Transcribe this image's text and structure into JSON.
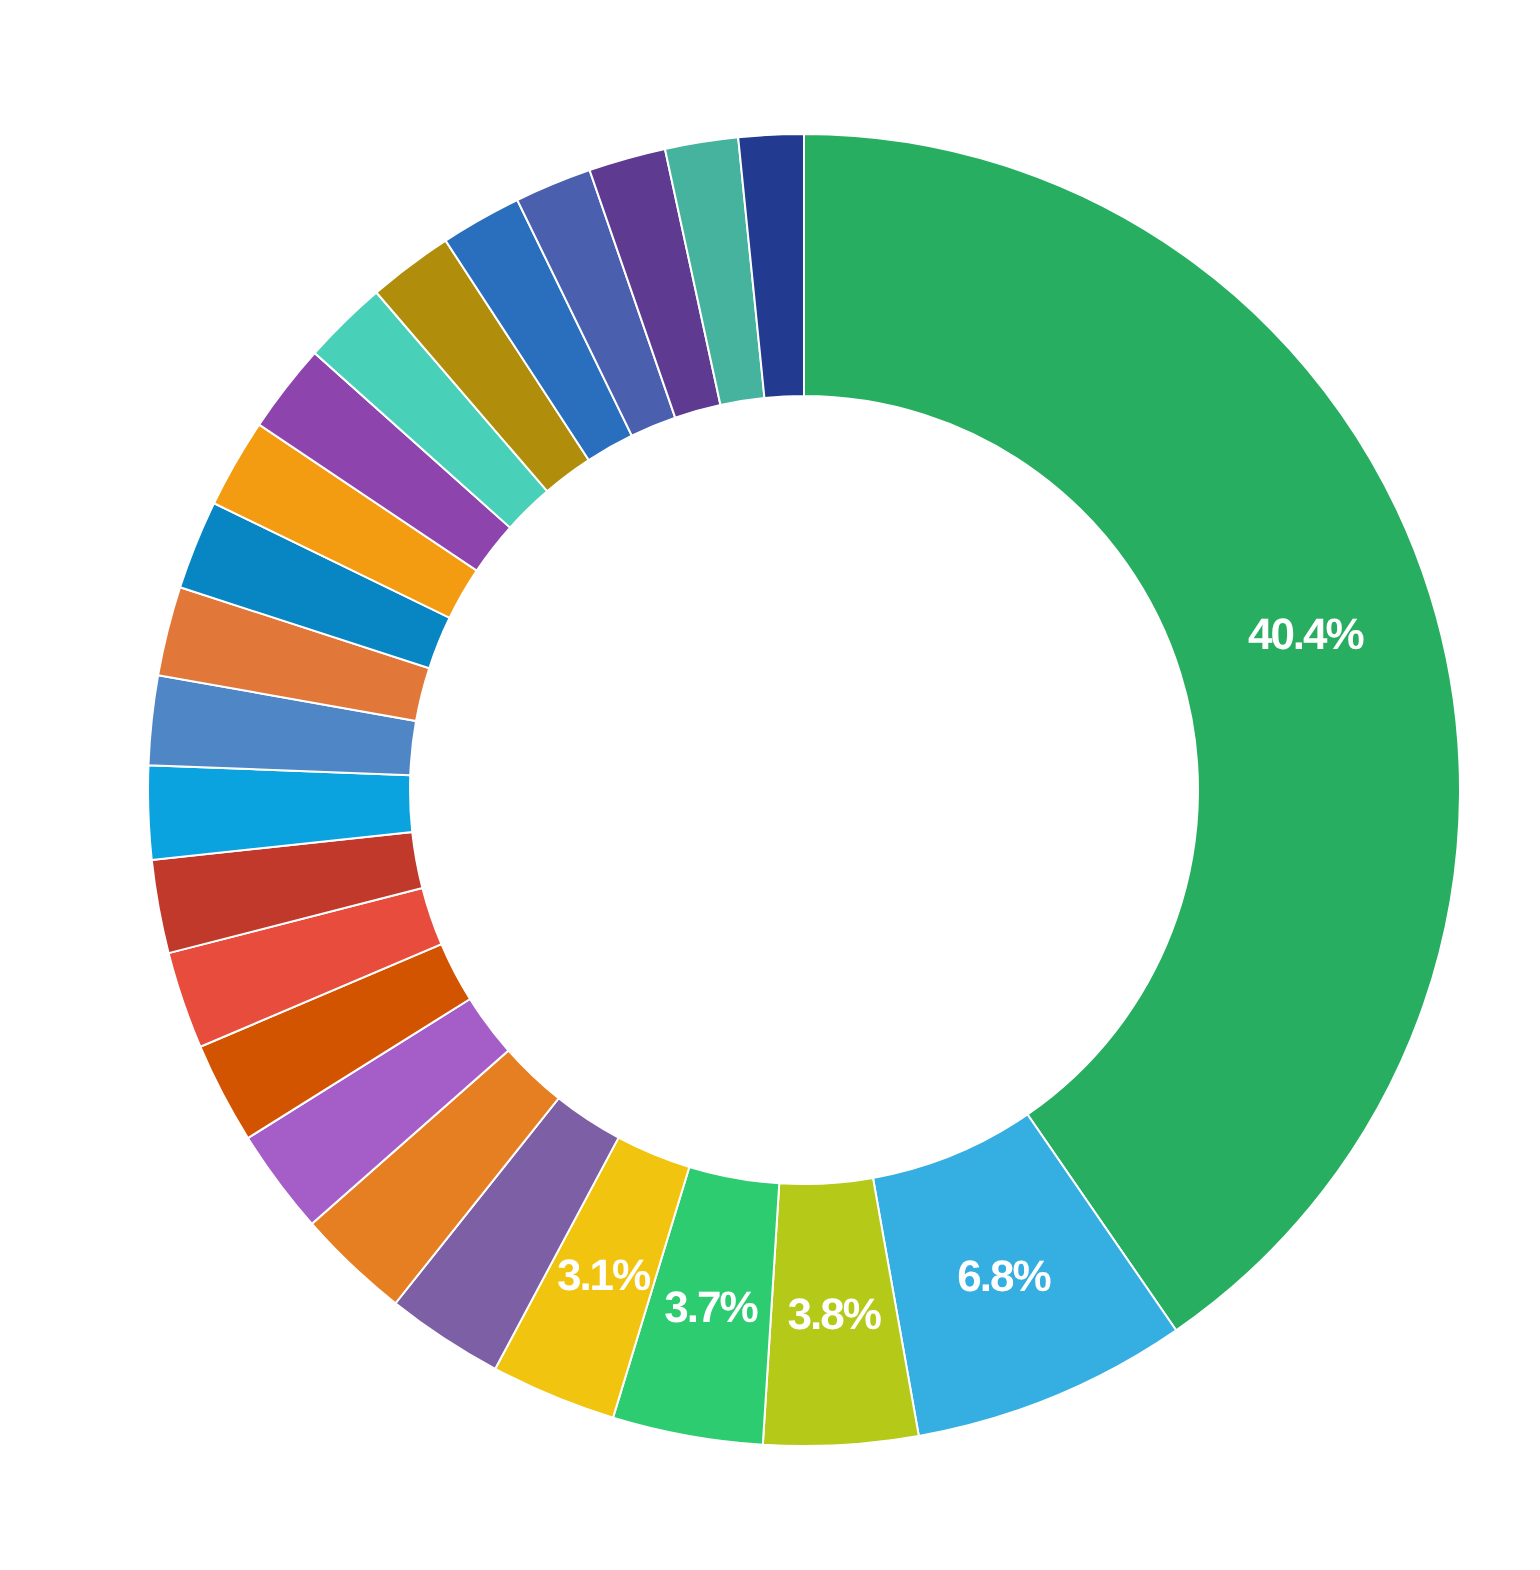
{
  "chart_data": {
    "type": "donut",
    "categories": [
      null,
      null,
      null,
      null,
      null,
      null,
      null,
      null,
      null,
      null,
      null,
      null,
      null,
      null,
      null,
      null,
      null,
      null,
      null,
      null,
      null,
      null,
      null,
      null
    ],
    "values": [
      40.4,
      6.8,
      3.8,
      3.7,
      3.1,
      2.9,
      2.8,
      2.6,
      2.5,
      2.4,
      2.3,
      2.3,
      2.2,
      2.2,
      2.2,
      2.2,
      2.2,
      2.1,
      2.1,
      2.0,
      1.9,
      1.9,
      1.8,
      1.6
    ],
    "colors": [
      "#27ae60",
      "#35aee2",
      "#b5c918",
      "#2ecc71",
      "#f1c40f",
      "#7d5fa5",
      "#e67e22",
      "#a55ec8",
      "#d35400",
      "#e74c3c",
      "#c0392b",
      "#0aa3df",
      "#4f86c6",
      "#e2773a",
      "#0786c3",
      "#f39c12",
      "#8e44ad",
      "#48d1b8",
      "#b08d0b",
      "#2a6fbd",
      "#4a5fad",
      "#5e3b91",
      "#45b39d",
      "#223a8f"
    ],
    "value_labels": [
      "40.4%",
      "6.8%",
      "3.8%",
      "3.7%",
      "3.1%",
      null,
      null,
      null,
      null,
      null,
      null,
      null,
      null,
      null,
      null,
      null,
      null,
      null,
      null,
      null,
      null,
      null,
      null,
      null
    ]
  }
}
